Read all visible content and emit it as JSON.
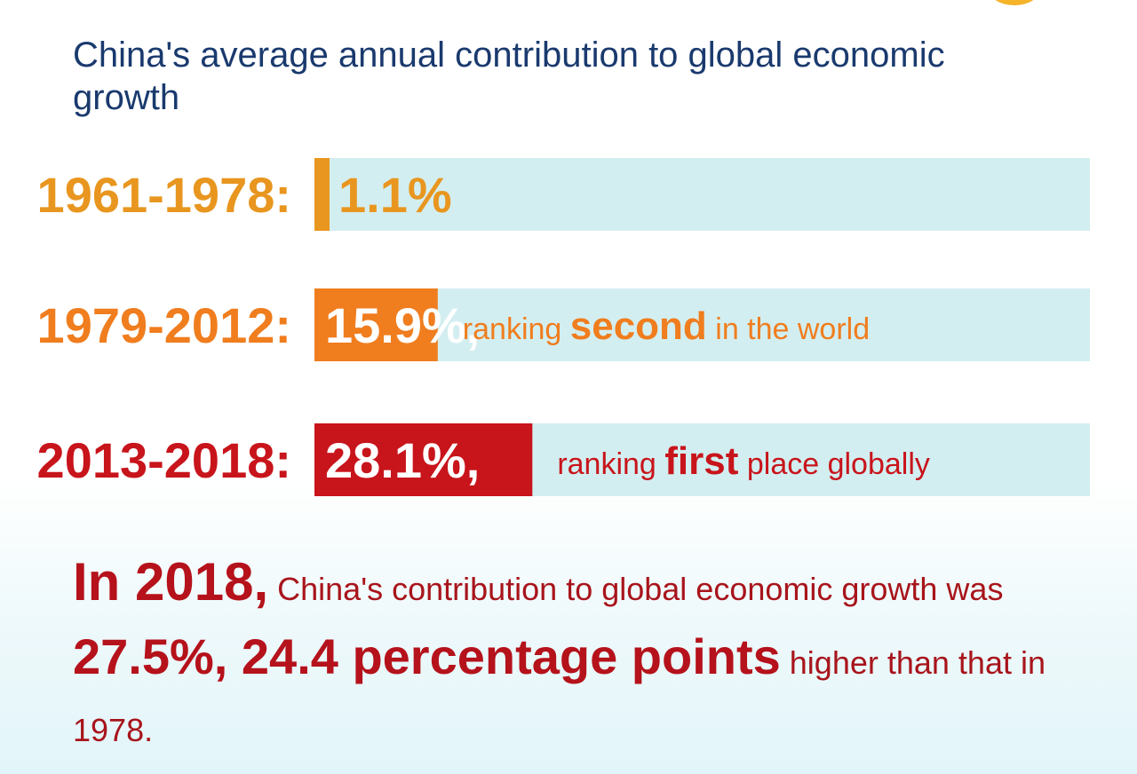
{
  "title": "China's average annual contribution to global economic growth",
  "chart_data": {
    "type": "bar",
    "orientation": "horizontal",
    "title": "China's average annual contribution to global economic growth",
    "categories": [
      "1961-1978:",
      "1979-2012:",
      "2013-2018:"
    ],
    "values": [
      1.1,
      15.9,
      28.1
    ],
    "value_labels": [
      "1.1%",
      "15.9%,",
      "28.1%,"
    ],
    "notes": [
      null,
      {
        "pre": "ranking",
        "strong": "second",
        "post": "in the world"
      },
      {
        "pre": "ranking",
        "strong": "first",
        "post": "place globally"
      }
    ],
    "xlim": [
      0,
      100
    ],
    "grid": false,
    "legend": "none",
    "colors": {
      "bars": [
        "#e8961f",
        "#f07d1e",
        "#c8141b"
      ],
      "track": "#d3eef0"
    }
  },
  "summary": {
    "part1_big": "In 2018,",
    "part2": " China's contribution to global economic growth was ",
    "part3_mid": "27.5%, 24.4 percentage points",
    "part4": " higher than that in 1978."
  }
}
